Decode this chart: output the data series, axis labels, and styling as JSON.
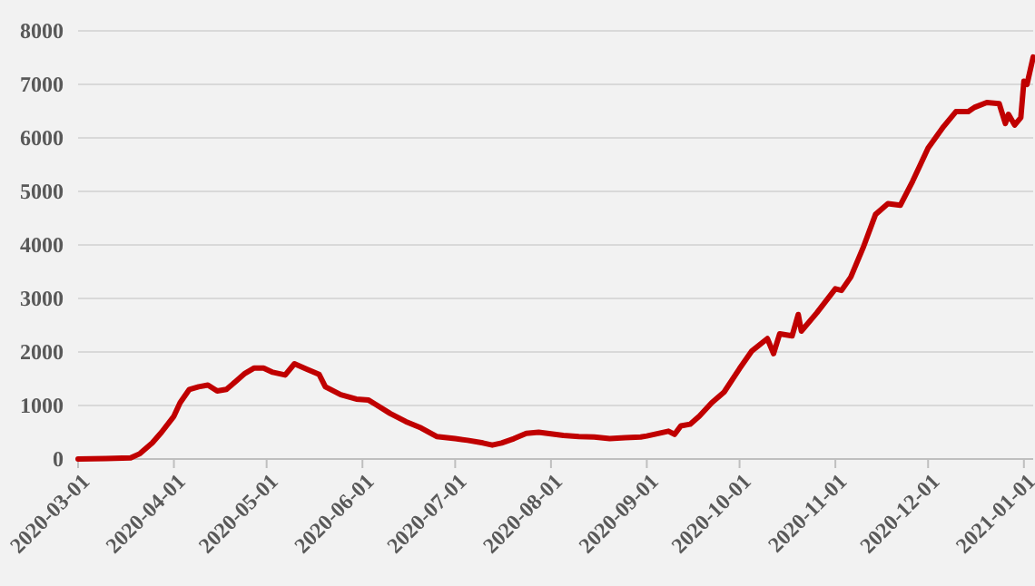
{
  "chart_data": {
    "type": "line",
    "x": [
      "2020-03-01",
      "2020-03-10",
      "2020-03-18",
      "2020-03-21",
      "2020-03-25",
      "2020-03-28",
      "2020-04-01",
      "2020-04-03",
      "2020-04-06",
      "2020-04-09",
      "2020-04-12",
      "2020-04-15",
      "2020-04-18",
      "2020-04-21",
      "2020-04-24",
      "2020-04-27",
      "2020-04-30",
      "2020-05-03",
      "2020-05-07",
      "2020-05-10",
      "2020-05-14",
      "2020-05-18",
      "2020-05-20",
      "2020-05-25",
      "2020-05-30",
      "2020-06-03",
      "2020-06-05",
      "2020-06-10",
      "2020-06-15",
      "2020-06-20",
      "2020-06-25",
      "2020-07-01",
      "2020-07-05",
      "2020-07-10",
      "2020-07-13",
      "2020-07-16",
      "2020-07-20",
      "2020-07-24",
      "2020-07-28",
      "2020-08-01",
      "2020-08-05",
      "2020-08-10",
      "2020-08-15",
      "2020-08-20",
      "2020-08-25",
      "2020-08-30",
      "2020-09-01",
      "2020-09-05",
      "2020-09-08",
      "2020-09-10",
      "2020-09-12",
      "2020-09-15",
      "2020-09-18",
      "2020-09-22",
      "2020-09-26",
      "2020-10-01",
      "2020-10-05",
      "2020-10-10",
      "2020-10-12",
      "2020-10-14",
      "2020-10-18",
      "2020-10-20",
      "2020-10-21",
      "2020-10-26",
      "2020-11-01",
      "2020-11-03",
      "2020-11-06",
      "2020-11-10",
      "2020-11-14",
      "2020-11-18",
      "2020-11-22",
      "2020-11-26",
      "2020-12-01",
      "2020-12-06",
      "2020-12-10",
      "2020-12-14",
      "2020-12-16",
      "2020-12-20",
      "2020-12-24",
      "2020-12-26",
      "2020-12-27",
      "2020-12-29",
      "2020-12-31",
      "2021-01-01",
      "2021-01-02",
      "2021-01-04"
    ],
    "series": [
      {
        "color": "#c00000",
        "values": [
          0,
          10,
          20,
          100,
          300,
          500,
          800,
          1050,
          1300,
          1350,
          1380,
          1270,
          1300,
          1450,
          1600,
          1700,
          1700,
          1620,
          1570,
          1780,
          1680,
          1580,
          1350,
          1200,
          1120,
          1100,
          1030,
          850,
          700,
          580,
          420,
          380,
          350,
          300,
          260,
          300,
          380,
          480,
          500,
          470,
          440,
          420,
          410,
          380,
          400,
          410,
          430,
          480,
          520,
          460,
          620,
          650,
          800,
          1050,
          1250,
          1690,
          2020,
          2250,
          1970,
          2340,
          2300,
          2700,
          2390,
          2730,
          3180,
          3150,
          3400,
          3950,
          4570,
          4770,
          4740,
          5190,
          5810,
          6210,
          6490,
          6490,
          6570,
          6660,
          6640,
          6270,
          6440,
          6240,
          6380,
          7060,
          7000,
          7510
        ]
      }
    ],
    "xlim": [
      "2020-03-01",
      "2021-01-04"
    ],
    "xticks": [
      {
        "value": "2020-03-01",
        "label": "2020-03-01"
      },
      {
        "value": "2020-04-01",
        "label": "2020-04-01"
      },
      {
        "value": "2020-05-01",
        "label": "2020-05-01"
      },
      {
        "value": "2020-06-01",
        "label": "2020-06-01"
      },
      {
        "value": "2020-07-01",
        "label": "2020-07-01"
      },
      {
        "value": "2020-08-01",
        "label": "2020-08-01"
      },
      {
        "value": "2020-09-01",
        "label": "2020-09-01"
      },
      {
        "value": "2020-10-01",
        "label": "2020-10-01"
      },
      {
        "value": "2020-11-01",
        "label": "2020-11-01"
      },
      {
        "value": "2020-12-01",
        "label": "2020-12-01"
      },
      {
        "value": "2021-01-01",
        "label": "2021-01-01"
      }
    ],
    "ylim": [
      0,
      8000
    ],
    "yticks": [
      0,
      1000,
      2000,
      3000,
      4000,
      5000,
      6000,
      7000,
      8000
    ],
    "grid": "y",
    "marker": "none",
    "line_style": "solid"
  }
}
